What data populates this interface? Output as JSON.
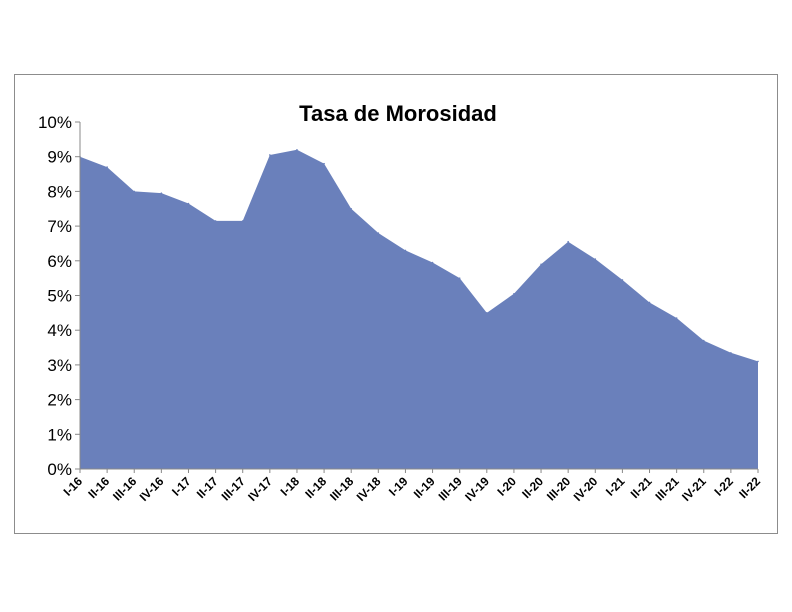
{
  "chart_data": {
    "type": "area",
    "title": "Tasa de Morosidad",
    "xlabel": "",
    "ylabel": "",
    "categories": [
      "I-16",
      "II-16",
      "III-16",
      "IV-16",
      "I-17",
      "II-17",
      "III-17",
      "IV-17",
      "I-18",
      "II-18",
      "III-18",
      "IV-18",
      "I-19",
      "II-19",
      "III-19",
      "IV-19",
      "I-20",
      "II-20",
      "III-20",
      "IV-20",
      "I-21",
      "II-21",
      "III-21",
      "IV-21",
      "I-22",
      "II-22"
    ],
    "series": [
      {
        "values": [
          9.0,
          8.7,
          8.0,
          7.95,
          7.65,
          7.15,
          7.15,
          9.05,
          9.2,
          8.8,
          7.5,
          6.8,
          6.3,
          5.95,
          5.5,
          4.5,
          5.05,
          5.9,
          6.55,
          6.05,
          5.45,
          4.8,
          4.35,
          3.7,
          3.35,
          3.1
        ]
      }
    ],
    "ylim": [
      0,
      10
    ],
    "yticks": [
      "0%",
      "1%",
      "2%",
      "3%",
      "4%",
      "5%",
      "6%",
      "7%",
      "8%",
      "9%",
      "10%"
    ],
    "grid": false,
    "legend": "none",
    "colors": {
      "fill": "#6a80bb",
      "axis": "#888888"
    }
  }
}
